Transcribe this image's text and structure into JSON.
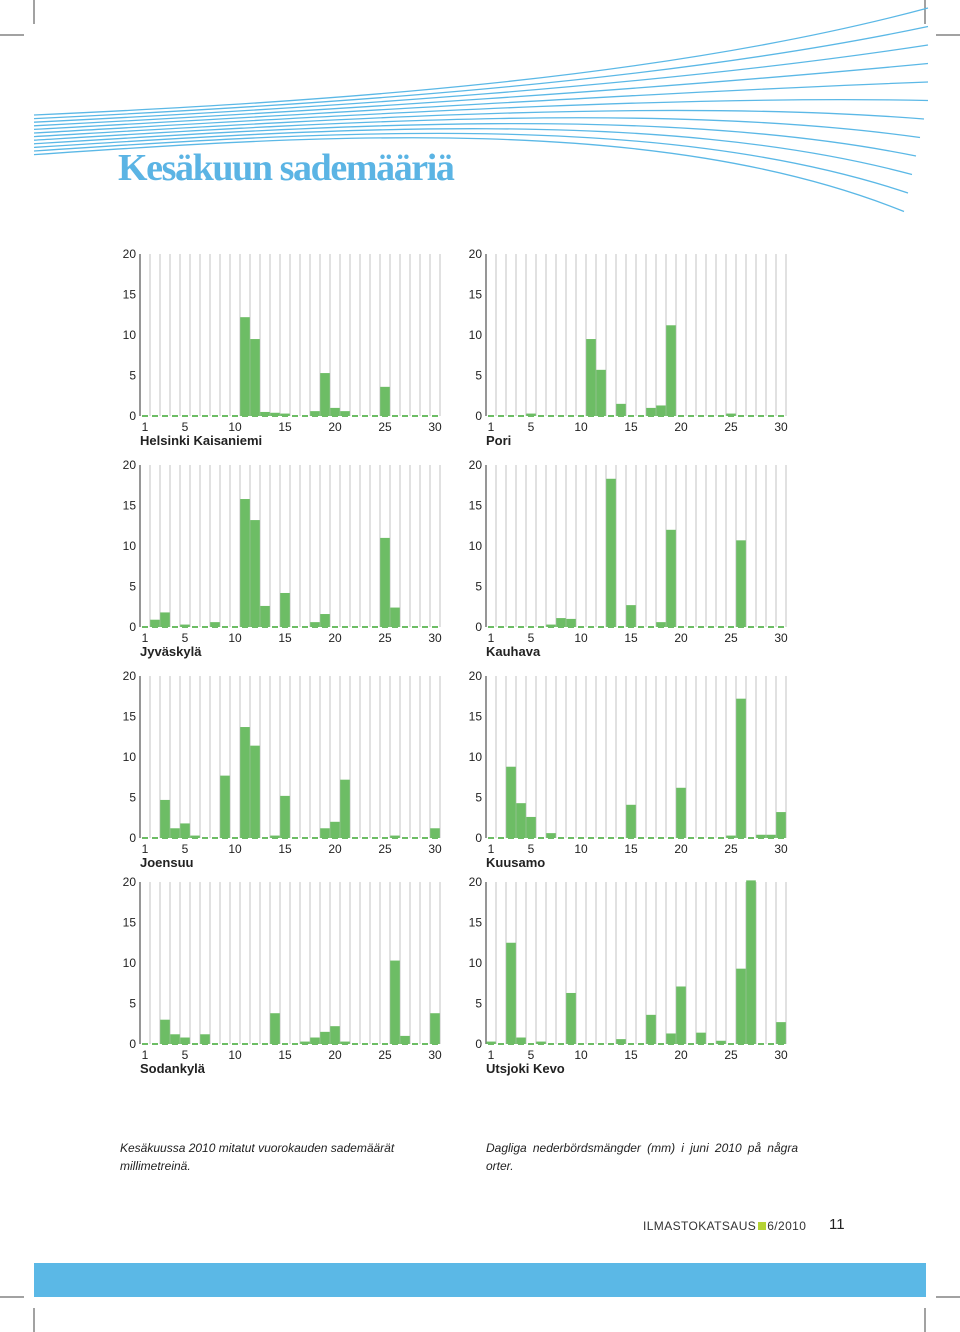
{
  "page": {
    "title": "Kesäkuun sademääriä",
    "caption_fi": "Kesäkuussa 2010 mitatut vuorokauden sademäärät millimetreinä.",
    "caption_sv": "Dagliga nederbördsmängder (mm) i juni 2010 på några orter.",
    "publication": "ILMASTOKATSAUS",
    "issue": "6/2010",
    "page_number": "11",
    "colors": {
      "bar": "#6dbd65",
      "title": "#5bb4e4",
      "bottom_bar": "#5bb8e6",
      "accent_square": "#b5d334",
      "grid": "#c8c8c8"
    }
  },
  "chart_data": [
    {
      "type": "bar",
      "station": "Helsinki Kaisaniemi",
      "x": [
        1,
        2,
        3,
        4,
        5,
        6,
        7,
        8,
        9,
        10,
        11,
        12,
        13,
        14,
        15,
        16,
        17,
        18,
        19,
        20,
        21,
        22,
        23,
        24,
        25,
        26,
        27,
        28,
        29,
        30
      ],
      "values": [
        0,
        0,
        0,
        0,
        0,
        0,
        0,
        0,
        0,
        0,
        12.2,
        9.5,
        0.5,
        0.4,
        0.3,
        0,
        0,
        0.6,
        5.3,
        1.0,
        0.6,
        0,
        0,
        0,
        3.6,
        0,
        0,
        0,
        0,
        0
      ],
      "xticks": [
        1,
        5,
        10,
        15,
        20,
        25,
        30
      ],
      "yticks": [
        0,
        5,
        10,
        15,
        20
      ],
      "ylim": [
        0,
        20
      ],
      "grid": true
    },
    {
      "type": "bar",
      "station": "Pori",
      "x": [
        1,
        2,
        3,
        4,
        5,
        6,
        7,
        8,
        9,
        10,
        11,
        12,
        13,
        14,
        15,
        16,
        17,
        18,
        19,
        20,
        21,
        22,
        23,
        24,
        25,
        26,
        27,
        28,
        29,
        30
      ],
      "values": [
        0,
        0,
        0,
        0,
        0.3,
        0,
        0,
        0,
        0,
        0,
        9.5,
        5.7,
        0,
        1.5,
        0,
        0,
        1.0,
        1.3,
        11.2,
        0,
        0,
        0,
        0,
        0,
        0.3,
        0,
        0,
        0,
        0,
        0
      ],
      "xticks": [
        1,
        5,
        10,
        15,
        20,
        25,
        30
      ],
      "yticks": [
        0,
        5,
        10,
        15,
        20
      ],
      "ylim": [
        0,
        20
      ],
      "grid": true
    },
    {
      "type": "bar",
      "station": "Jyväskylä",
      "x": [
        1,
        2,
        3,
        4,
        5,
        6,
        7,
        8,
        9,
        10,
        11,
        12,
        13,
        14,
        15,
        16,
        17,
        18,
        19,
        20,
        21,
        22,
        23,
        24,
        25,
        26,
        27,
        28,
        29,
        30
      ],
      "values": [
        0,
        0.9,
        1.8,
        0,
        0.3,
        0,
        0,
        0.6,
        0,
        0,
        15.8,
        13.2,
        2.6,
        0,
        4.2,
        0,
        0,
        0.6,
        1.6,
        0,
        0,
        0,
        0,
        0,
        11.0,
        2.4,
        0,
        0,
        0,
        0
      ],
      "xticks": [
        1,
        5,
        10,
        15,
        20,
        25,
        30
      ],
      "yticks": [
        0,
        5,
        10,
        15,
        20
      ],
      "ylim": [
        0,
        20
      ],
      "grid": true
    },
    {
      "type": "bar",
      "station": "Kauhava",
      "x": [
        1,
        2,
        3,
        4,
        5,
        6,
        7,
        8,
        9,
        10,
        11,
        12,
        13,
        14,
        15,
        16,
        17,
        18,
        19,
        20,
        21,
        22,
        23,
        24,
        25,
        26,
        27,
        28,
        29,
        30
      ],
      "values": [
        0,
        0,
        0,
        0,
        0,
        0,
        0.3,
        1.1,
        1.0,
        0,
        0,
        0,
        18.3,
        0,
        2.7,
        0,
        0,
        0.6,
        12.0,
        0,
        0,
        0,
        0,
        0,
        0,
        10.7,
        0,
        0,
        0,
        0
      ],
      "xticks": [
        1,
        5,
        10,
        15,
        20,
        25,
        30
      ],
      "yticks": [
        0,
        5,
        10,
        15,
        20
      ],
      "ylim": [
        0,
        20
      ],
      "grid": true
    },
    {
      "type": "bar",
      "station": "Joensuu",
      "x": [
        1,
        2,
        3,
        4,
        5,
        6,
        7,
        8,
        9,
        10,
        11,
        12,
        13,
        14,
        15,
        16,
        17,
        18,
        19,
        20,
        21,
        22,
        23,
        24,
        25,
        26,
        27,
        28,
        29,
        30
      ],
      "values": [
        0,
        0,
        4.7,
        1.2,
        1.8,
        0.3,
        0,
        0,
        7.7,
        0,
        13.7,
        11.4,
        0,
        0.3,
        5.2,
        0,
        0,
        0,
        1.2,
        2.0,
        7.2,
        0,
        0,
        0,
        0,
        0.3,
        0,
        0,
        0,
        1.2
      ],
      "xticks": [
        1,
        5,
        10,
        15,
        20,
        25,
        30
      ],
      "yticks": [
        0,
        5,
        10,
        15,
        20
      ],
      "ylim": [
        0,
        20
      ],
      "grid": true
    },
    {
      "type": "bar",
      "station": "Kuusamo",
      "x": [
        1,
        2,
        3,
        4,
        5,
        6,
        7,
        8,
        9,
        10,
        11,
        12,
        13,
        14,
        15,
        16,
        17,
        18,
        19,
        20,
        21,
        22,
        23,
        24,
        25,
        26,
        27,
        28,
        29,
        30
      ],
      "values": [
        0,
        0,
        8.8,
        4.3,
        2.6,
        0,
        0.6,
        0,
        0,
        0,
        0,
        0,
        0,
        0,
        4.1,
        0,
        0,
        0,
        0,
        6.2,
        0,
        0,
        0,
        0,
        0.3,
        17.2,
        0,
        0.4,
        0.4,
        3.2
      ],
      "xticks": [
        1,
        5,
        10,
        15,
        20,
        25,
        30
      ],
      "yticks": [
        0,
        5,
        10,
        15,
        20
      ],
      "ylim": [
        0,
        20
      ],
      "grid": true
    },
    {
      "type": "bar",
      "station": "Sodankylä",
      "x": [
        1,
        2,
        3,
        4,
        5,
        6,
        7,
        8,
        9,
        10,
        11,
        12,
        13,
        14,
        15,
        16,
        17,
        18,
        19,
        20,
        21,
        22,
        23,
        24,
        25,
        26,
        27,
        28,
        29,
        30
      ],
      "values": [
        0,
        0,
        3.0,
        1.2,
        0.8,
        0,
        1.2,
        0,
        0,
        0,
        0,
        0,
        0,
        3.8,
        0,
        0,
        0.3,
        0.8,
        1.5,
        2.2,
        0.3,
        0,
        0,
        0,
        0,
        10.3,
        1.0,
        0,
        0,
        3.8
      ],
      "xticks": [
        1,
        5,
        10,
        15,
        20,
        25,
        30
      ],
      "yticks": [
        0,
        5,
        10,
        15,
        20
      ],
      "ylim": [
        0,
        20
      ],
      "grid": true
    },
    {
      "type": "bar",
      "station": "Utsjoki Kevo",
      "x": [
        1,
        2,
        3,
        4,
        5,
        6,
        7,
        8,
        9,
        10,
        11,
        12,
        13,
        14,
        15,
        16,
        17,
        18,
        19,
        20,
        21,
        22,
        23,
        24,
        25,
        26,
        27,
        28,
        29,
        30
      ],
      "values": [
        0.3,
        0,
        12.5,
        0.8,
        0,
        0.3,
        0,
        0,
        6.3,
        0,
        0,
        0,
        0,
        0.6,
        0,
        0,
        3.6,
        0,
        1.3,
        7.1,
        0,
        1.4,
        0,
        0.4,
        0,
        9.3,
        20.2,
        0,
        0,
        2.7
      ],
      "xticks": [
        1,
        5,
        10,
        15,
        20,
        25,
        30
      ],
      "yticks": [
        0,
        5,
        10,
        15,
        20
      ],
      "ylim": [
        0,
        20
      ],
      "grid": true
    }
  ]
}
